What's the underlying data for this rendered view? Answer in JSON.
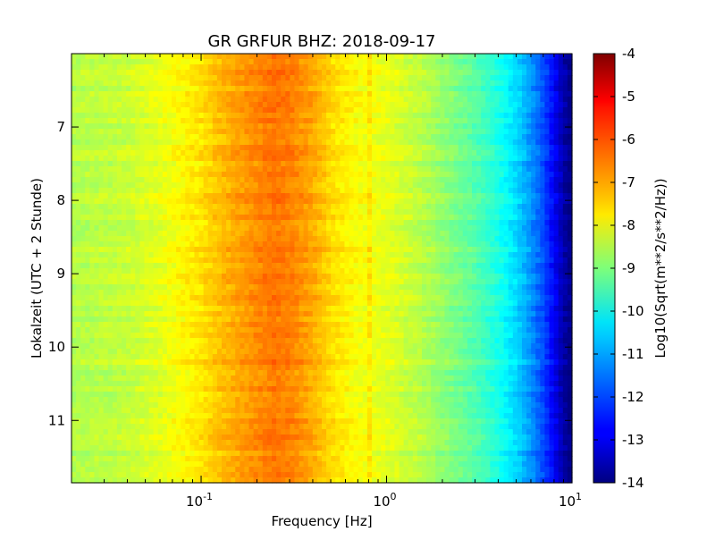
{
  "chart_data": {
    "type": "heatmap",
    "title": "GR GRFUR BHZ: 2018-09-17",
    "xlabel": "Frequency [Hz]",
    "ylabel": "Lokalzeit (UTC + 2 Stunde)",
    "x_scale": "log",
    "xlim": [
      0.02,
      10
    ],
    "x_ticks": [
      {
        "base": "10",
        "exp": "-1",
        "value": 0.1
      },
      {
        "base": "10",
        "exp": "0",
        "value": 1
      },
      {
        "base": "10",
        "exp": "1",
        "value": 10
      }
    ],
    "ylim": [
      6.0,
      11.85
    ],
    "y_inverted": true,
    "y_ticks": [
      "7",
      "8",
      "9",
      "10",
      "11"
    ],
    "colorbar": {
      "label": "Log10(Sqrt(m**2/s**2/Hz))",
      "range": [
        -14,
        -4
      ],
      "ticks": [
        "-4",
        "-5",
        "-6",
        "-7",
        "-8",
        "-9",
        "-10",
        "-11",
        "-12",
        "-13",
        "-14"
      ],
      "colormap": "jet"
    },
    "spectrum_profile": {
      "frequency_hz": [
        0.02,
        0.04,
        0.06,
        0.08,
        0.1,
        0.12,
        0.15,
        0.2,
        0.25,
        0.3,
        0.4,
        0.5,
        0.7,
        1.0,
        1.5,
        2.0,
        3.0,
        4.0,
        5.0,
        6.0,
        7.0,
        8.0,
        9.0,
        10.0
      ],
      "log10_amplitude": [
        -8.5,
        -8.3,
        -8.0,
        -7.7,
        -7.5,
        -7.2,
        -6.9,
        -6.6,
        -6.4,
        -6.5,
        -6.9,
        -7.4,
        -7.8,
        -8.0,
        -8.4,
        -8.8,
        -9.4,
        -10.0,
        -10.6,
        -11.3,
        -12.0,
        -12.8,
        -13.6,
        -14.0
      ]
    }
  }
}
